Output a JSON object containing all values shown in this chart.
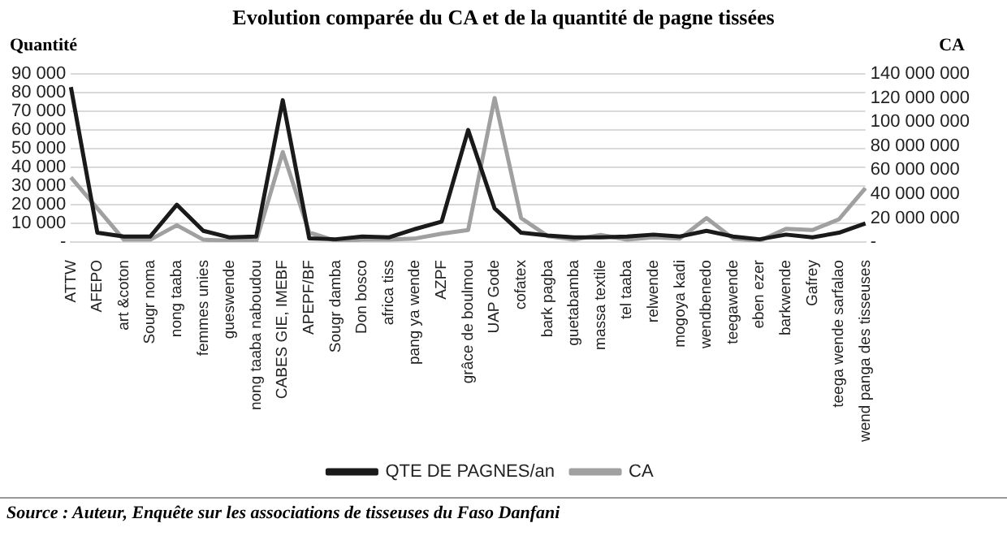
{
  "chart_data": {
    "type": "line",
    "title": "Evolution comparée du CA et de la quantité de pagne tissées",
    "ylabel": "Quantité",
    "y2label": "CA",
    "categories": [
      "ATTW",
      "AFEPO",
      "art &coton",
      "Sougr noma",
      "nong taaba",
      "femmes unies",
      "gueswende",
      "nong taaba naboudou",
      "CABES GIE, IMEBF",
      "APEPF/BF",
      "Sougr damba",
      "Don bosco",
      "africa tiss",
      "pang ya wende",
      "AZPF",
      "grâce de boulmou",
      "UAP Gode",
      "cofatex",
      "bark pagba",
      "guetabamba",
      "massa textile",
      "tel taaba",
      "relwende",
      "mogoya kadi",
      "wendbenedo",
      "teegawende",
      "eben ezer",
      "barkwende",
      "Gafrey",
      "teega wende sarfalao",
      "wend panga des tisseuses"
    ],
    "series": [
      {
        "name": "QTE DE PAGNES/an",
        "color": "#1a1a1a",
        "values": [
          83000,
          5000,
          3000,
          3000,
          20000,
          6000,
          2500,
          3000,
          76000,
          2000,
          1500,
          3000,
          2500,
          7000,
          11000,
          60000,
          18000,
          5000,
          3500,
          2500,
          2500,
          3000,
          4000,
          3000,
          6000,
          3000,
          1500,
          4000,
          2500,
          5000,
          10000
        ]
      },
      {
        "name": "CA",
        "color": "#a0a0a0",
        "axis": "y2",
        "values": [
          54000000,
          28000000,
          2000000,
          2000000,
          14000000,
          2000000,
          1000000,
          1000000,
          75000000,
          8000000,
          1000000,
          2000000,
          2000000,
          3000000,
          7000000,
          10000000,
          120000000,
          20000000,
          5000000,
          2000000,
          6000000,
          2000000,
          4000000,
          3000000,
          20000000,
          3000000,
          1000000,
          11000000,
          10000000,
          19000000,
          45000000
        ]
      }
    ],
    "ylim": [
      0,
      90000
    ],
    "yticks": [
      {
        "value": 0,
        "label": "-"
      },
      {
        "value": 10000,
        "label": "10 000"
      },
      {
        "value": 20000,
        "label": "20 000"
      },
      {
        "value": 30000,
        "label": "30 000"
      },
      {
        "value": 40000,
        "label": "40 000"
      },
      {
        "value": 50000,
        "label": "50 000"
      },
      {
        "value": 60000,
        "label": "60 000"
      },
      {
        "value": 70000,
        "label": "70 000"
      },
      {
        "value": 80000,
        "label": "80 000"
      },
      {
        "value": 90000,
        "label": "90 000"
      }
    ],
    "y2lim": [
      0,
      140000000
    ],
    "y2ticks": [
      {
        "value": 0,
        "label": "-"
      },
      {
        "value": 20000000,
        "label": "20 000 000"
      },
      {
        "value": 40000000,
        "label": "40 000 000"
      },
      {
        "value": 60000000,
        "label": "60 000 000"
      },
      {
        "value": 80000000,
        "label": "80 000 000"
      },
      {
        "value": 100000000,
        "label": "100 000 000"
      },
      {
        "value": 120000000,
        "label": "120 000 000"
      },
      {
        "value": 140000000,
        "label": "140 000 000"
      }
    ],
    "grid": "y",
    "legend": "bottom",
    "marker": "none",
    "annotations": [
      "Source : Auteur, Enquête sur les associations de tisseuses du Faso Danfani"
    ]
  }
}
